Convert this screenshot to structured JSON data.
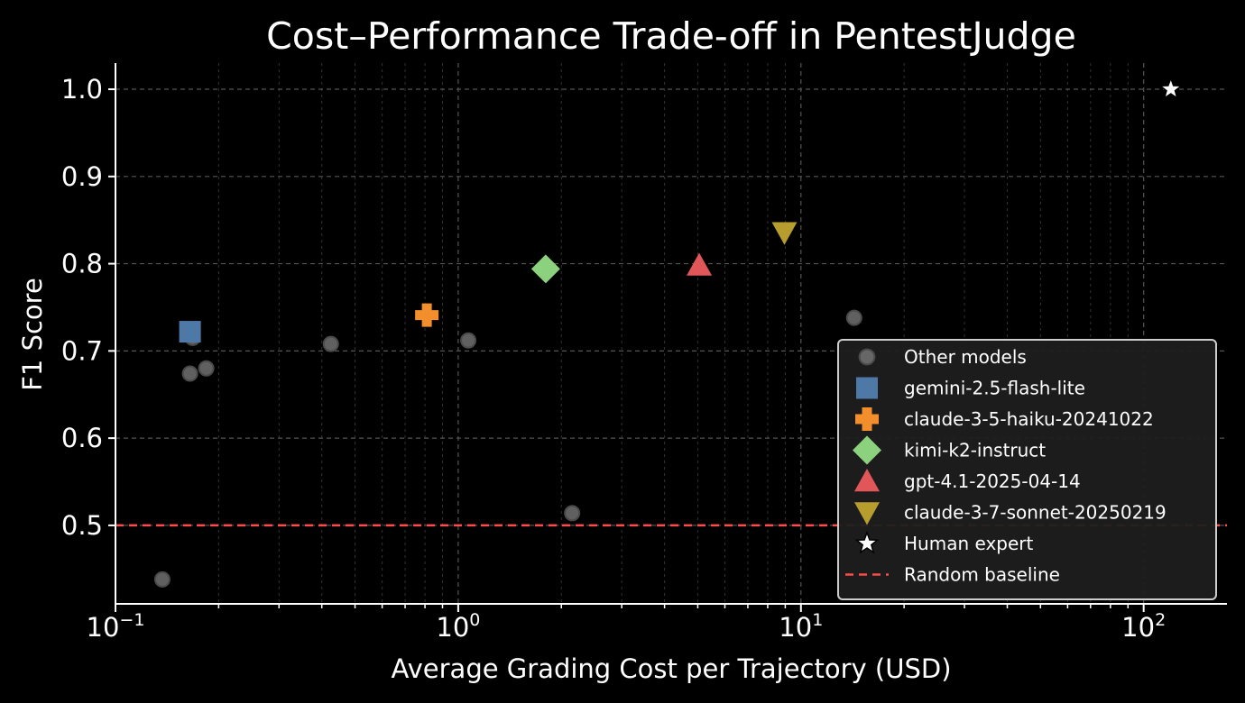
{
  "chart_data": {
    "type": "scatter",
    "title": "Cost–Performance Trade-off in PentestJudge",
    "xlabel": "Average Grading Cost per Trajectory (USD)",
    "ylabel": "F1 Score",
    "xscale": "log",
    "xlim": [
      0.1,
      175
    ],
    "ylim": [
      0.41,
      1.03
    ],
    "x_ticks": [
      {
        "value": 0.1,
        "base": "10",
        "exp": "−1"
      },
      {
        "value": 1,
        "base": "10",
        "exp": "0"
      },
      {
        "value": 10,
        "base": "10",
        "exp": "1"
      },
      {
        "value": 100,
        "base": "10",
        "exp": "2"
      }
    ],
    "y_ticks": [
      {
        "value": 0.5,
        "label": "0.5"
      },
      {
        "value": 0.6,
        "label": "0.6"
      },
      {
        "value": 0.7,
        "label": "0.7"
      },
      {
        "value": 0.8,
        "label": "0.8"
      },
      {
        "value": 0.9,
        "label": "0.9"
      },
      {
        "value": 1.0,
        "label": "1.0"
      }
    ],
    "grid": true,
    "legend_position": "lower-right",
    "series": [
      {
        "name": "Other models",
        "marker": "circle",
        "color": "#808080",
        "points": [
          {
            "x": 0.137,
            "y": 0.438
          },
          {
            "x": 0.165,
            "y": 0.674
          },
          {
            "x": 0.168,
            "y": 0.715
          },
          {
            "x": 0.184,
            "y": 0.68
          },
          {
            "x": 0.425,
            "y": 0.708
          },
          {
            "x": 1.07,
            "y": 0.712
          },
          {
            "x": 2.15,
            "y": 0.514
          },
          {
            "x": 14.3,
            "y": 0.738
          }
        ]
      },
      {
        "name": "gemini-2.5-flash-lite",
        "marker": "square",
        "color": "#4e79a7",
        "points": [
          {
            "x": 0.165,
            "y": 0.722
          }
        ]
      },
      {
        "name": "claude-3-5-haiku-20241022",
        "marker": "plus",
        "color": "#f28e2b",
        "points": [
          {
            "x": 0.81,
            "y": 0.741
          }
        ]
      },
      {
        "name": "kimi-k2-instruct",
        "marker": "diamond",
        "color": "#8cd17d",
        "points": [
          {
            "x": 1.8,
            "y": 0.794
          }
        ]
      },
      {
        "name": "gpt-4.1-2025-04-14",
        "marker": "triangle-up",
        "color": "#e15759",
        "points": [
          {
            "x": 5.05,
            "y": 0.798
          }
        ]
      },
      {
        "name": "claude-3-7-sonnet-20250219",
        "marker": "triangle-down",
        "color": "#b69d2d",
        "points": [
          {
            "x": 8.95,
            "y": 0.836
          }
        ]
      },
      {
        "name": "Human expert",
        "marker": "star",
        "color": "#ffffff",
        "points": [
          {
            "x": 120,
            "y": 1.0
          }
        ]
      }
    ],
    "reference_lines": [
      {
        "name": "Random baseline",
        "orientation": "horizontal",
        "y": 0.5,
        "style": "dashed",
        "color": "#ff4b4b"
      }
    ]
  }
}
